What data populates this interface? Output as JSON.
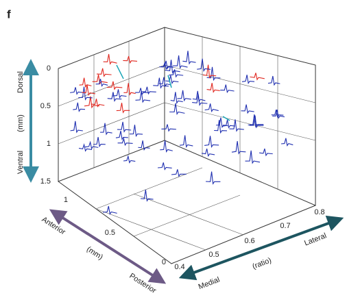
{
  "panel_label": "f",
  "axes": {
    "vertical": {
      "ticks": [
        "0",
        "0.5",
        "1",
        "1.5"
      ],
      "label": "(mm)",
      "start": "Dorsal",
      "end": "Ventral"
    },
    "anterior_posterior": {
      "ticks": [
        "1",
        "0.5",
        "0"
      ],
      "label": "(mm)",
      "start": "Anterior",
      "end": "Posterior"
    },
    "medial_lateral": {
      "ticks": [
        "0.4",
        "0.5",
        "0.6",
        "0.7",
        "0.8"
      ],
      "label": "(ratio)",
      "start": "Medial",
      "end": "Lateral"
    }
  }
}
